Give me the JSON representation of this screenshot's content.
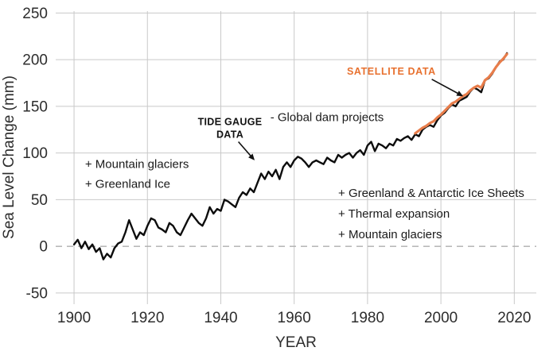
{
  "chart_data": {
    "type": "line",
    "title": "",
    "xlabel": "YEAR",
    "ylabel": "Sea Level Change (mm)",
    "xlim": [
      1895,
      2026
    ],
    "ylim": [
      -62,
      252
    ],
    "x_ticks": [
      1900,
      1920,
      1940,
      1960,
      1980,
      2000,
      2020
    ],
    "y_ticks": [
      -50,
      0,
      50,
      100,
      150,
      200,
      250
    ],
    "grid": true,
    "legend_position": "none",
    "zero_line": {
      "style": "dashed",
      "color": "#aeaeae"
    },
    "colors": {
      "tide_gauge": "#0d0d0d",
      "satellite": "#E87D4B",
      "grid": "#c9c9c9",
      "tick_text": "#2d2d2d"
    },
    "series": [
      {
        "id": "tide-gauge-line",
        "name": "Tide gauge data",
        "color_key": "tide_gauge",
        "width": 2.4,
        "x_start": 1900,
        "x_step": 1,
        "values": [
          2,
          7,
          -2,
          5,
          -3,
          2,
          -6,
          -2,
          -14,
          -8,
          -12,
          -2,
          3,
          5,
          15,
          28,
          18,
          8,
          15,
          12,
          22,
          30,
          28,
          20,
          18,
          15,
          25,
          22,
          15,
          12,
          20,
          28,
          35,
          30,
          25,
          22,
          30,
          42,
          35,
          40,
          38,
          50,
          48,
          45,
          42,
          52,
          58,
          55,
          62,
          58,
          68,
          78,
          72,
          80,
          75,
          82,
          72,
          85,
          90,
          85,
          92,
          96,
          94,
          90,
          85,
          90,
          92,
          90,
          88,
          95,
          92,
          90,
          98,
          95,
          98,
          100,
          95,
          100,
          103,
          98,
          108,
          112,
          102,
          110,
          108,
          105,
          110,
          108,
          115,
          113,
          116,
          118,
          114,
          120,
          118,
          125,
          128,
          130,
          128,
          135,
          140,
          143,
          148,
          152,
          150,
          156,
          158,
          160,
          166,
          170,
          168,
          165,
          178,
          180,
          185,
          192,
          198,
          200,
          207
        ]
      },
      {
        "id": "satellite-line",
        "name": "Satellite data",
        "color_key": "satellite",
        "width": 3.2,
        "x_start": 1993,
        "x_step": 1,
        "values": [
          121,
          124,
          127,
          129,
          132,
          134,
          138,
          141,
          145,
          149,
          153,
          155,
          158,
          161,
          163,
          167,
          170,
          172,
          170,
          178,
          181,
          186,
          192,
          197,
          201,
          206
        ]
      }
    ],
    "annotations": [
      {
        "id": "glaciers-greenland",
        "lines": [
          "+ Mountain glaciers",
          "+ Greenland Ice"
        ],
        "x": 1903,
        "y": 84,
        "anchor": "start",
        "bold": false,
        "size": 15,
        "line_height": 25,
        "letter_spacing": 0,
        "color": "#1a1a1a"
      },
      {
        "id": "tide-gauge-data",
        "lines": [
          "TIDE GAUGE",
          "DATA"
        ],
        "x": 1942.5,
        "y": 130,
        "anchor": "middle",
        "bold": true,
        "size": 12.5,
        "line_height": 16,
        "letter_spacing": 0.3,
        "color": "#111111",
        "arrow": {
          "x1": 1944.8,
          "y1": 112,
          "x2": 1948.8,
          "y2": 94,
          "color": "#111111"
        }
      },
      {
        "id": "global-dam-projects",
        "lines": [
          "- Global dam projects"
        ],
        "x": 1953.5,
        "y": 134,
        "anchor": "start",
        "bold": false,
        "size": 15,
        "line_height": 25,
        "letter_spacing": 0,
        "color": "#1a1a1a"
      },
      {
        "id": "satellite-data",
        "lines": [
          "SATELLITE DATA"
        ],
        "x": 1986.5,
        "y": 184,
        "anchor": "middle",
        "bold": true,
        "size": 12.5,
        "line_height": 16,
        "letter_spacing": 0.6,
        "color": "#E8712F",
        "arrow": {
          "x1": 1997.5,
          "y1": 179,
          "x2": 2005.5,
          "y2": 162,
          "color": "#111111"
        }
      },
      {
        "id": "ice-sheets-thermal",
        "lines": [
          "+ Greenland & Antarctic Ice Sheets",
          "+ Thermal expansion",
          "+ Mountain glaciers"
        ],
        "x": 1972,
        "y": 53,
        "anchor": "start",
        "bold": false,
        "size": 15,
        "line_height": 26,
        "letter_spacing": 0,
        "color": "#1a1a1a"
      }
    ]
  }
}
